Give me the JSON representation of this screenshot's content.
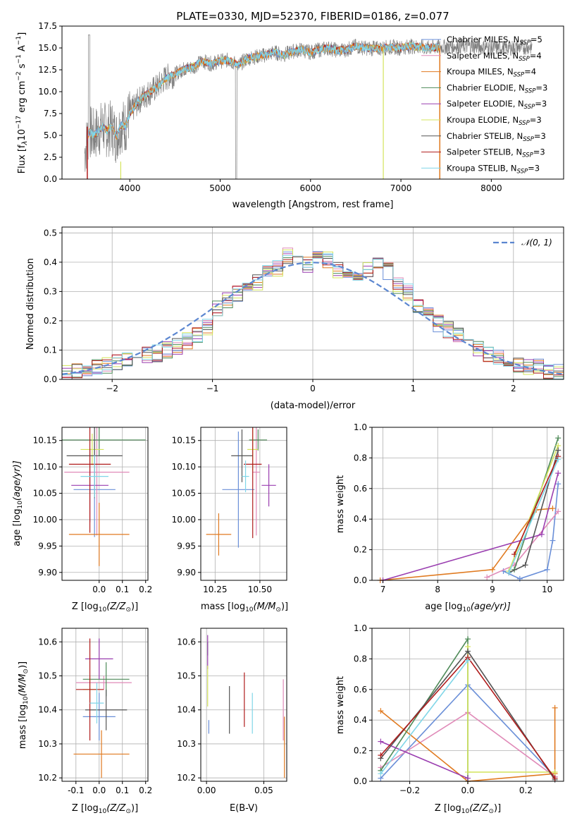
{
  "colors": {
    "Chabrier MILES": "#6a8fd8",
    "Salpeter MILES": "#e08ab8",
    "Kroupa MILES": "#e07a20",
    "Chabrier ELODIE": "#4e8a58",
    "Salpeter ELODIE": "#9a3eb0",
    "Kroupa ELODIE": "#d4e45c",
    "Chabrier STELIB": "#555555",
    "Salpeter STELIB": "#b01c1c",
    "Kroupa STELIB": "#80d6e8",
    "data": "#808080",
    "gauss": "#5b86d0",
    "grid": "#b0b0b0"
  },
  "chart_data": [
    {
      "type": "line",
      "title": "PLATE=0330, MJD=52370, FIBERID=0186, z=0.077",
      "xlabel": "wavelength [Angstrom, rest frame]",
      "ylabel": "Flux [f$_\\lambda$10$^{-17}$ erg cm$^{-2}$ s$^{-1}$ A$^{-1}$]",
      "ylabel_parts": {
        "a": "Flux [f",
        "b": "λ",
        "c": "10",
        "d": "−17",
        "e": " erg cm",
        "f": "−2",
        "g": " s",
        "h": "−1",
        "i": " A",
        "j": "−1",
        "k": "]"
      },
      "xlim": [
        3250,
        8800
      ],
      "ylim": [
        0,
        17.5
      ],
      "xticks": [
        4000,
        5000,
        6000,
        7000,
        8000
      ],
      "yticks": [
        0.0,
        2.5,
        5.0,
        7.5,
        10.0,
        12.5,
        15.0,
        17.5
      ],
      "legend": [
        "Chabrier MILES, N$_{SSP}$=5",
        "Salpeter MILES, N$_{SSP}$=4",
        "Kroupa MILES, N$_{SSP}$=4",
        "Chabrier ELODIE, N$_{SSP}$=3",
        "Salpeter ELODIE, N$_{SSP}$=3",
        "Kroupa ELODIE, N$_{SSP}$=3",
        "Chabrier STELIB, N$_{SSP}$=3",
        "Salpeter STELIB, N$_{SSP}$=3",
        "Kroupa STELIB, N$_{SSP}$=3"
      ],
      "legend_display": [
        {
          "name": "Chabrier MILES, N",
          "sub": "SSP",
          "val": "=5"
        },
        {
          "name": "Salpeter MILES, N",
          "sub": "SSP",
          "val": "=4"
        },
        {
          "name": "Kroupa MILES, N",
          "sub": "SSP",
          "val": "=4"
        },
        {
          "name": "Chabrier ELODIE, N",
          "sub": "SSP",
          "val": "=3"
        },
        {
          "name": "Salpeter ELODIE, N",
          "sub": "SSP",
          "val": "=3"
        },
        {
          "name": "Kroupa ELODIE, N",
          "sub": "SSP",
          "val": "=3"
        },
        {
          "name": "Chabrier STELIB, N",
          "sub": "SSP",
          "val": "=3"
        },
        {
          "name": "Salpeter STELIB, N",
          "sub": "SSP",
          "val": "=3"
        },
        {
          "name": "Kroupa STELIB, N",
          "sub": "SSP",
          "val": "=3"
        }
      ],
      "legend_position": "upper right",
      "spectrum_wavelength": [
        3500,
        3550,
        3600,
        3650,
        3700,
        3750,
        3800,
        3850,
        3900,
        3950,
        4000,
        4100,
        4200,
        4300,
        4400,
        4500,
        4600,
        4700,
        4800,
        4900,
        5000,
        5100,
        5200,
        5300,
        5400,
        5500,
        5600,
        5700,
        5800,
        5900,
        6000,
        6100,
        6200,
        6300,
        6400,
        6500,
        6600,
        6700,
        6800,
        6900,
        7000,
        7100,
        7200,
        7300,
        7400,
        7600,
        7800,
        8000,
        8200,
        8400
      ],
      "spectrum_flux": [
        3.0,
        5.5,
        5.0,
        5.5,
        6.0,
        5.5,
        6.0,
        4.8,
        6.2,
        6.0,
        7.5,
        9.0,
        9.8,
        10.5,
        11.6,
        12.0,
        12.6,
        12.8,
        13.5,
        13.2,
        13.5,
        13.6,
        13.0,
        13.8,
        14.0,
        14.2,
        14.5,
        14.2,
        14.6,
        14.8,
        14.5,
        14.8,
        15.0,
        14.7,
        14.8,
        15.2,
        15.0,
        14.9,
        15.0,
        15.1,
        15.0,
        15.2,
        15.1,
        15.0,
        15.1,
        15.2,
        15.2,
        15.0,
        15.0,
        15.1
      ],
      "grid": false
    },
    {
      "type": "line",
      "xlabel": "(data-model)/error",
      "ylabel": "Normed distribution",
      "xlim": [
        -2.5,
        2.5
      ],
      "ylim": [
        0,
        0.52
      ],
      "xticks": [
        -2,
        -1,
        0,
        1,
        2
      ],
      "yticks": [
        0.0,
        0.1,
        0.2,
        0.3,
        0.4,
        0.5
      ],
      "legend": [
        "$\\mathcal{N}(0,1)$"
      ],
      "legend_display": [
        "𝒩(0, 1)"
      ],
      "legend_position": "upper right",
      "bins": [
        -2.5,
        -2.4,
        -2.3,
        -2.2,
        -2.1,
        -2.0,
        -1.9,
        -1.8,
        -1.7,
        -1.6,
        -1.5,
        -1.4,
        -1.3,
        -1.2,
        -1.1,
        -1.0,
        -0.9,
        -0.8,
        -0.7,
        -0.6,
        -0.5,
        -0.4,
        -0.3,
        -0.2,
        -0.1,
        0.0,
        0.1,
        0.2,
        0.3,
        0.4,
        0.5,
        0.6,
        0.7,
        0.8,
        0.9,
        1.0,
        1.1,
        1.2,
        1.3,
        1.4,
        1.5,
        1.6,
        1.7,
        1.8,
        1.9,
        2.0,
        2.1,
        2.2,
        2.3,
        2.4,
        2.5
      ],
      "histogram_base": [
        0.02,
        0.025,
        0.03,
        0.04,
        0.05,
        0.06,
        0.07,
        0.075,
        0.08,
        0.09,
        0.1,
        0.11,
        0.13,
        0.15,
        0.18,
        0.24,
        0.27,
        0.29,
        0.3,
        0.33,
        0.36,
        0.38,
        0.42,
        0.4,
        0.39,
        0.42,
        0.41,
        0.37,
        0.36,
        0.35,
        0.38,
        0.4,
        0.37,
        0.32,
        0.3,
        0.25,
        0.22,
        0.19,
        0.17,
        0.15,
        0.12,
        0.1,
        0.09,
        0.07,
        0.06,
        0.05,
        0.045,
        0.04,
        0.03,
        0.025
      ],
      "grid": true
    },
    {
      "type": "scatter",
      "xlabel": "Z [log$_{10}$($Z/Z_\\odot$)]",
      "xlabel_display": {
        "a": "Z [log",
        "b": "10",
        "c": "(Z/Z",
        "d": "⊙",
        "e": ")]"
      },
      "ylabel": "age  [log$_{10}$($age/yr$)]",
      "ylabel_display": {
        "a": "age  [log",
        "b": "10",
        "c": "(age/yr)]"
      },
      "xlim": [
        -0.16,
        0.21
      ],
      "ylim": [
        9.885,
        10.175
      ],
      "xticks": [
        0.0,
        0.1,
        0.2
      ],
      "xticklabels": [
        "0.0",
        "0.1",
        "0.2"
      ],
      "yticks": [
        9.9,
        9.95,
        10.0,
        10.05,
        10.1,
        10.15
      ],
      "yticklabels": [
        "9.90",
        "9.95",
        "10.00",
        "10.05",
        "10.10",
        "10.15"
      ],
      "points": [
        {
          "model": "Chabrier MILES",
          "x": -0.02,
          "xerr": 0.09,
          "y": 10.057,
          "yerr": 0.09
        },
        {
          "model": "Salpeter MILES",
          "x": -0.01,
          "xerr": 0.14,
          "y": 10.09,
          "yerr": 0.12
        },
        {
          "model": "Kroupa MILES",
          "x": 0.0,
          "xerr": 0.13,
          "y": 9.972,
          "yerr": 0.06
        },
        {
          "model": "Chabrier ELODIE",
          "x": 0.0,
          "xerr": 0.2,
          "y": 10.151,
          "yerr": 0.03
        },
        {
          "model": "Salpeter ELODIE",
          "x": -0.04,
          "xerr": 0.08,
          "y": 10.065,
          "yerr": 0.07
        },
        {
          "model": "Kroupa ELODIE",
          "x": -0.03,
          "xerr": 0.05,
          "y": 10.133,
          "yerr": 0.03
        },
        {
          "model": "Chabrier STELIB",
          "x": -0.02,
          "xerr": 0.12,
          "y": 10.121,
          "yerr": 0.08
        },
        {
          "model": "Salpeter STELIB",
          "x": -0.04,
          "xerr": 0.09,
          "y": 10.105,
          "yerr": 0.13
        },
        {
          "model": "Kroupa STELIB",
          "x": -0.02,
          "xerr": 0.06,
          "y": 10.082,
          "yerr": 0.04
        }
      ]
    },
    {
      "type": "scatter",
      "xlabel": "mass [log$_{10}$($M/M_\\odot$)]",
      "xlabel_display": {
        "a": "mass [log",
        "b": "10",
        "c": "(M/M",
        "d": "⊙",
        "e": ")]"
      },
      "xlim": [
        10.17,
        10.65
      ],
      "ylim": [
        9.885,
        10.175
      ],
      "xticks": [
        10.25,
        10.5
      ],
      "xticklabels": [
        "10.25",
        "10.50"
      ],
      "yticks": [
        9.9,
        9.95,
        10.0,
        10.05,
        10.1,
        10.15
      ],
      "yticklabels": [
        "9.90",
        "9.95",
        "10.00",
        "10.05",
        "10.10",
        "10.15"
      ],
      "points": [
        {
          "model": "Chabrier MILES",
          "x": 10.38,
          "xerr": 0.09,
          "y": 10.057,
          "yerr": 0.11
        },
        {
          "model": "Salpeter MILES",
          "x": 10.48,
          "xerr": 0.02,
          "y": 10.09,
          "yerr": 0.12
        },
        {
          "model": "Kroupa MILES",
          "x": 10.27,
          "xerr": 0.07,
          "y": 9.972,
          "yerr": 0.04
        },
        {
          "model": "Chabrier ELODIE",
          "x": 10.49,
          "xerr": 0.05,
          "y": 10.151,
          "yerr": 0.02
        },
        {
          "model": "Salpeter ELODIE",
          "x": 10.55,
          "xerr": 0.04,
          "y": 10.065,
          "yerr": 0.04
        },
        {
          "model": "Kroupa ELODIE",
          "x": 10.46,
          "xerr": 0.03,
          "y": 10.133,
          "yerr": 0.04
        },
        {
          "model": "Chabrier STELIB",
          "x": 10.4,
          "xerr": 0.06,
          "y": 10.121,
          "yerr": 0.05
        },
        {
          "model": "Salpeter STELIB",
          "x": 10.46,
          "xerr": 0.05,
          "y": 10.105,
          "yerr": 0.14
        },
        {
          "model": "Kroupa STELIB",
          "x": 10.42,
          "xerr": 0.02,
          "y": 10.082,
          "yerr": 0.03
        }
      ]
    },
    {
      "type": "line",
      "xlabel": "age  [log$_{10}$($age/yr$)]",
      "xlabel_display": {
        "a": "age  [log",
        "b": "10",
        "c": "(age/yr)]"
      },
      "ylabel": "mass weight",
      "xlim": [
        6.8,
        10.3
      ],
      "ylim": [
        0,
        1
      ],
      "xticks": [
        7,
        8,
        9,
        10
      ],
      "yticks": [
        0.0,
        0.2,
        0.4,
        0.6,
        0.8,
        1.0
      ],
      "series": [
        {
          "model": "Chabrier MILES",
          "x": [
            9.2,
            9.5,
            10.0,
            10.1,
            10.2
          ],
          "y": [
            0.06,
            0.01,
            0.07,
            0.26,
            0.63
          ]
        },
        {
          "model": "Salpeter MILES",
          "x": [
            8.9,
            9.4,
            10.2
          ],
          "y": [
            0.02,
            0.1,
            0.45
          ]
        },
        {
          "model": "Kroupa MILES",
          "x": [
            6.95,
            9.0,
            9.8,
            10.1
          ],
          "y": [
            0.0,
            0.07,
            0.46,
            0.47
          ]
        },
        {
          "model": "Chabrier ELODIE",
          "x": [
            9.4,
            10.2
          ],
          "y": [
            0.07,
            0.93
          ]
        },
        {
          "model": "Salpeter ELODIE",
          "x": [
            7.0,
            9.9,
            10.2
          ],
          "y": [
            0.0,
            0.3,
            0.7
          ]
        },
        {
          "model": "Kroupa ELODIE",
          "x": [
            9.3,
            10.2
          ],
          "y": [
            0.06,
            0.88
          ]
        },
        {
          "model": "Chabrier STELIB",
          "x": [
            9.3,
            9.6,
            10.2
          ],
          "y": [
            0.05,
            0.1,
            0.85
          ]
        },
        {
          "model": "Salpeter STELIB",
          "x": [
            9.4,
            10.2
          ],
          "y": [
            0.17,
            0.81
          ]
        },
        {
          "model": "Kroupa STELIB",
          "x": [
            9.3,
            10.2
          ],
          "y": [
            0.05,
            0.79
          ]
        }
      ],
      "grid": true
    },
    {
      "type": "scatter",
      "xlabel": "Z [log$_{10}$($Z/Z_\\odot$)]",
      "xlabel_display": {
        "a": "Z [log",
        "b": "10",
        "c": "(Z/Z",
        "d": "⊙",
        "e": ")]"
      },
      "ylabel": "mass [log$_{10}$($M/M_\\odot$)]",
      "ylabel_display": {
        "a": "mass [log",
        "b": "10",
        "c": "(M/M",
        "d": "⊙",
        "e": ")]"
      },
      "xlim": [
        -0.16,
        0.21
      ],
      "ylim": [
        10.19,
        10.64
      ],
      "xticks": [
        -0.1,
        0.0,
        0.1,
        0.2
      ],
      "xticklabels": [
        "-0.1",
        "0.0",
        "0.1",
        "0.2"
      ],
      "yticks": [
        10.2,
        10.3,
        10.4,
        10.5,
        10.6
      ],
      "yticklabels": [
        "10.2",
        "10.3",
        "10.4",
        "10.5",
        "10.6"
      ],
      "points": [
        {
          "model": "Chabrier MILES",
          "x": 0.0,
          "xerr": 0.07,
          "y": 10.38,
          "yerr": 0.07
        },
        {
          "model": "Salpeter MILES",
          "x": 0.02,
          "xerr": 0.12,
          "y": 10.48,
          "yerr": 0.02
        },
        {
          "model": "Kroupa MILES",
          "x": 0.01,
          "xerr": 0.12,
          "y": 10.27,
          "yerr": 0.07
        },
        {
          "model": "Chabrier ELODIE",
          "x": 0.03,
          "xerr": 0.1,
          "y": 10.49,
          "yerr": 0.05
        },
        {
          "model": "Salpeter ELODIE",
          "x": 0.0,
          "xerr": 0.06,
          "y": 10.55,
          "yerr": 0.06
        },
        {
          "model": "Kroupa ELODIE",
          "x": -0.04,
          "xerr": 0.03,
          "y": 10.46,
          "yerr": 0.04
        },
        {
          "model": "Chabrier STELIB",
          "x": 0.03,
          "xerr": 0.09,
          "y": 10.4,
          "yerr": 0.06
        },
        {
          "model": "Salpeter STELIB",
          "x": -0.04,
          "xerr": 0.06,
          "y": 10.46,
          "yerr": 0.15
        },
        {
          "model": "Kroupa STELIB",
          "x": -0.01,
          "xerr": 0.03,
          "y": 10.42,
          "yerr": 0.06
        }
      ]
    },
    {
      "type": "scatter",
      "xlabel": "E(B-V)",
      "xlim": [
        -0.005,
        0.07
      ],
      "ylim": [
        10.19,
        10.64
      ],
      "xticks": [
        0.0,
        0.05
      ],
      "xticklabels": [
        "0.00",
        "0.05"
      ],
      "yticks": [
        10.2,
        10.3,
        10.4,
        10.5,
        10.6
      ],
      "yticklabels": [
        "10.2",
        "10.3",
        "10.4",
        "10.5",
        "10.6"
      ],
      "points": [
        {
          "model": "Chabrier MILES",
          "x": 0.002,
          "xerr": 0,
          "y": 10.35,
          "yerr": 0.02
        },
        {
          "model": "Salpeter MILES",
          "x": 0.067,
          "xerr": 0,
          "y": 10.4,
          "yerr": 0.09
        },
        {
          "model": "Kroupa MILES",
          "x": 0.068,
          "xerr": 0,
          "y": 10.29,
          "yerr": 0.09
        },
        {
          "model": "Chabrier ELODIE",
          "x": 0.001,
          "xerr": 0,
          "y": 10.58,
          "yerr": 0.02
        },
        {
          "model": "Salpeter ELODIE",
          "x": 0.001,
          "xerr": 0,
          "y": 10.57,
          "yerr": 0.05
        },
        {
          "model": "Kroupa ELODIE",
          "x": 0.001,
          "xerr": 0,
          "y": 10.47,
          "yerr": 0.06
        },
        {
          "model": "Chabrier STELIB",
          "x": 0.02,
          "xerr": 0,
          "y": 10.4,
          "yerr": 0.07
        },
        {
          "model": "Salpeter STELIB",
          "x": 0.033,
          "xerr": 0,
          "y": 10.43,
          "yerr": 0.08
        },
        {
          "model": "Kroupa STELIB",
          "x": 0.04,
          "xerr": 0,
          "y": 10.39,
          "yerr": 0.06
        }
      ]
    },
    {
      "type": "line",
      "xlabel": "Z [log$_{10}$($Z/Z_\\odot$)]",
      "xlabel_display": {
        "a": "Z [log",
        "b": "10",
        "c": "(Z/Z",
        "d": "⊙",
        "e": ")]"
      },
      "ylabel": "mass weight",
      "xlim": [
        -0.33,
        0.33
      ],
      "ylim": [
        0,
        1
      ],
      "xticks": [
        -0.2,
        0.0,
        0.2
      ],
      "xticklabels": [
        "−0.2",
        "0.0",
        "0.2"
      ],
      "yticks": [
        0.0,
        0.2,
        0.4,
        0.6,
        0.8,
        1.0
      ],
      "series": [
        {
          "model": "Chabrier MILES",
          "x": [
            -0.3,
            0.0,
            0.3
          ],
          "y": [
            0.02,
            0.63,
            0.03
          ]
        },
        {
          "model": "Salpeter MILES",
          "x": [
            -0.3,
            0.0,
            0.3
          ],
          "y": [
            0.09,
            0.45,
            0.03
          ]
        },
        {
          "model": "Kroupa MILES",
          "x": [
            -0.3,
            0.0,
            0.3,
            0.3
          ],
          "y": [
            0.46,
            0.0,
            0.05,
            0.48
          ]
        },
        {
          "model": "Chabrier ELODIE",
          "x": [
            -0.3,
            0.0,
            0.0
          ],
          "y": [
            0.07,
            0.93,
            0.0
          ]
        },
        {
          "model": "Salpeter ELODIE",
          "x": [
            -0.3,
            0.0
          ],
          "y": [
            0.26,
            0.02
          ]
        },
        {
          "model": "Kroupa ELODIE",
          "x": [
            0.0,
            0.0,
            0.3
          ],
          "y": [
            0.88,
            0.06,
            0.06
          ]
        },
        {
          "model": "Chabrier STELIB",
          "x": [
            -0.3,
            0.0,
            0.3
          ],
          "y": [
            0.15,
            0.85,
            0.01
          ]
        },
        {
          "model": "Salpeter STELIB",
          "x": [
            -0.3,
            0.0,
            0.3
          ],
          "y": [
            0.17,
            0.81,
            0.02
          ]
        },
        {
          "model": "Kroupa STELIB",
          "x": [
            -0.3,
            0.0
          ],
          "y": [
            0.05,
            0.79
          ]
        }
      ],
      "grid": true
    }
  ]
}
